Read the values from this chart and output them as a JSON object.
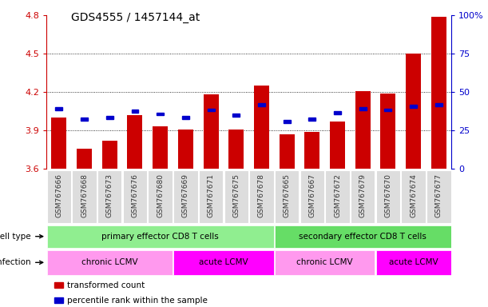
{
  "title": "GDS4555 / 1457144_at",
  "samples": [
    "GSM767666",
    "GSM767668",
    "GSM767673",
    "GSM767676",
    "GSM767680",
    "GSM767669",
    "GSM767671",
    "GSM767675",
    "GSM767678",
    "GSM767665",
    "GSM767667",
    "GSM767672",
    "GSM767679",
    "GSM767670",
    "GSM767674",
    "GSM767677"
  ],
  "red_values": [
    4.0,
    3.76,
    3.82,
    4.02,
    3.93,
    3.91,
    4.18,
    3.91,
    4.25,
    3.87,
    3.89,
    3.97,
    4.21,
    4.19,
    4.5,
    4.79
  ],
  "blue_values": [
    4.07,
    3.99,
    4.0,
    4.05,
    4.03,
    4.0,
    4.06,
    4.02,
    4.1,
    3.97,
    3.99,
    4.04,
    4.07,
    4.06,
    4.09,
    4.1
  ],
  "ylim": [
    3.6,
    4.8
  ],
  "y2lim": [
    0,
    100
  ],
  "yticks": [
    3.6,
    3.9,
    4.2,
    4.5,
    4.8
  ],
  "y2ticks": [
    0,
    25,
    50,
    75,
    100
  ],
  "y2ticklabels": [
    "0",
    "25",
    "50",
    "75",
    "100%"
  ],
  "bar_width": 0.6,
  "bar_bottom": 3.6,
  "cell_type_groups": [
    {
      "label": "primary effector CD8 T cells",
      "start": 0,
      "end": 9,
      "color": "#90EE90"
    },
    {
      "label": "secondary effector CD8 T cells",
      "start": 9,
      "end": 16,
      "color": "#66DD66"
    }
  ],
  "infection_groups": [
    {
      "label": "chronic LCMV",
      "start": 0,
      "end": 5,
      "color": "#FF99EE"
    },
    {
      "label": "acute LCMV",
      "start": 5,
      "end": 9,
      "color": "#FF00FF"
    },
    {
      "label": "chronic LCMV",
      "start": 9,
      "end": 13,
      "color": "#FF99EE"
    },
    {
      "label": "acute LCMV",
      "start": 13,
      "end": 16,
      "color": "#FF00FF"
    }
  ],
  "legend_items": [
    {
      "color": "#CC0000",
      "label": "transformed count"
    },
    {
      "color": "#0000CC",
      "label": "percentile rank within the sample"
    }
  ],
  "red_color": "#CC0000",
  "blue_color": "#0000CC",
  "tick_color_left": "#CC0000",
  "tick_color_right": "#0000CC",
  "sample_bg_color": "#CCCCCC",
  "sample_cell_color": "#DDDDDD"
}
